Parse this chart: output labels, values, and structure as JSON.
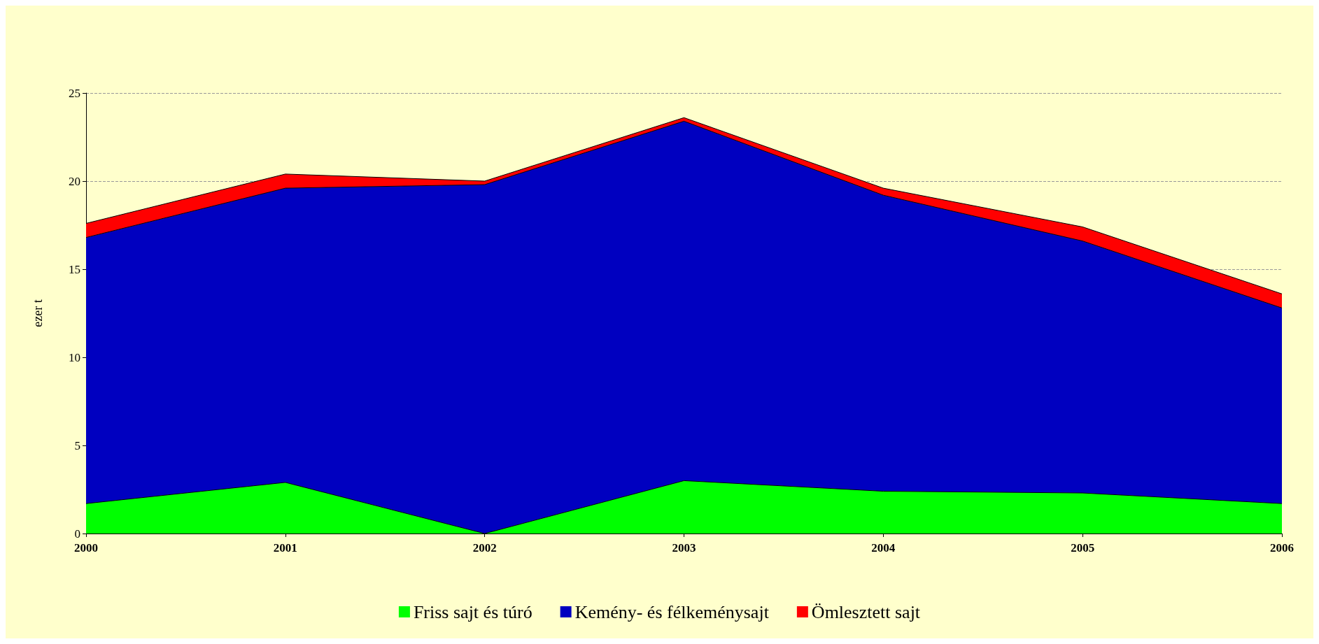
{
  "chart_data": {
    "type": "area",
    "stacked": true,
    "ylabel": "ezer t",
    "categories": [
      "2000",
      "2001",
      "2002",
      "2003",
      "2004",
      "2005",
      "2006"
    ],
    "series": [
      {
        "name": "Friss sajt és túró",
        "color": "#00ff00",
        "values": [
          1.7,
          2.9,
          0,
          3.0,
          2.4,
          2.3,
          1.7
        ]
      },
      {
        "name": "Kemény- és félkeménysajt",
        "color": "#0000c0",
        "values": [
          15.1,
          16.7,
          19.8,
          20.4,
          16.8,
          14.3,
          11.1
        ]
      },
      {
        "name": "Ömlesztett sajt",
        "color": "#ff0000",
        "values": [
          0.8,
          0.8,
          0.2,
          0.2,
          0.4,
          0.8,
          0.8
        ]
      }
    ],
    "ylim": [
      0,
      25
    ],
    "yticks": [
      0,
      5,
      10,
      15,
      20,
      25
    ],
    "grid": "y",
    "legend": "bottom"
  }
}
